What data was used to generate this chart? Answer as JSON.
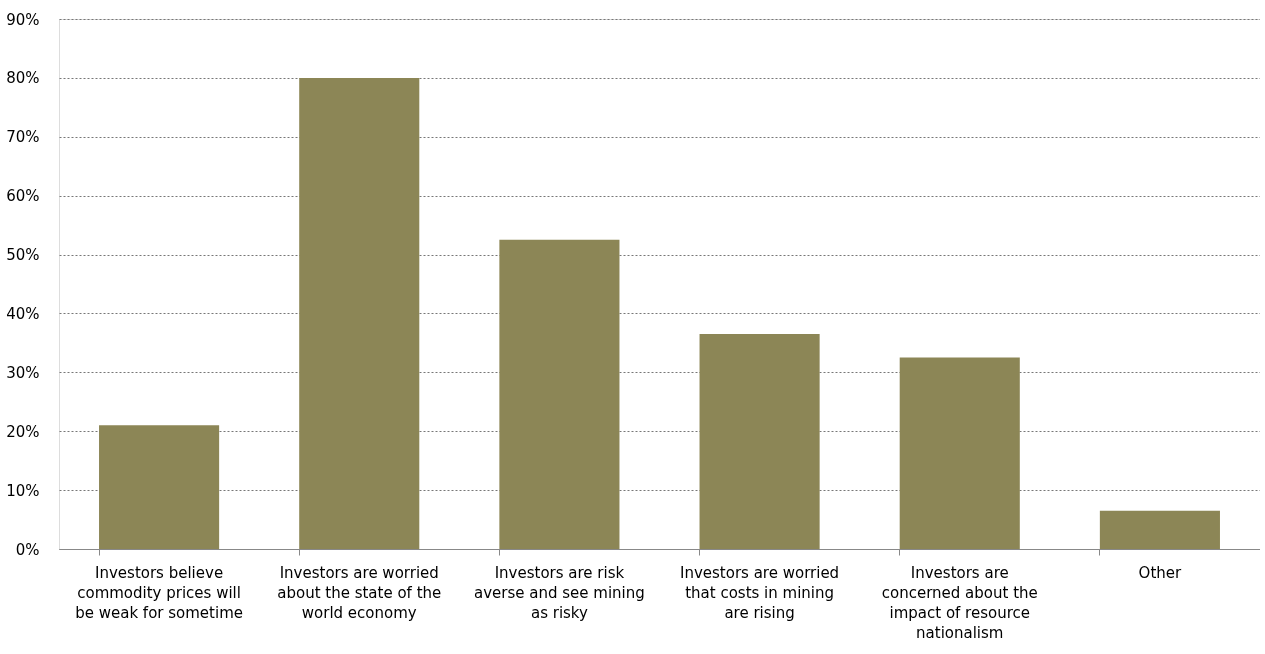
{
  "chart_data": {
    "type": "bar",
    "categories": [
      "Investors believe commodity prices will be weak for sometime",
      "Investors are worried about the state of the world economy",
      "Investors are risk averse and see mining as risky",
      "Investors are worried that costs in mining are rising",
      "Investors are concerned about the impact of resource nationalism",
      "Other"
    ],
    "values": [
      21,
      80,
      52.5,
      36.5,
      32.5,
      6.5
    ],
    "color": "#8c8656",
    "ylim": [
      0,
      90
    ],
    "yticks": [
      {
        "value": 0,
        "label": "0%"
      },
      {
        "value": 10,
        "label": "10%"
      },
      {
        "value": 20,
        "label": "20%"
      },
      {
        "value": 30,
        "label": "30%"
      },
      {
        "value": 40,
        "label": "40%"
      },
      {
        "value": 50,
        "label": "50%"
      },
      {
        "value": 60,
        "label": "60%"
      },
      {
        "value": 70,
        "label": "70%"
      },
      {
        "value": 80,
        "label": "80%"
      },
      {
        "value": 90,
        "label": "90%"
      }
    ],
    "grid": "y"
  }
}
